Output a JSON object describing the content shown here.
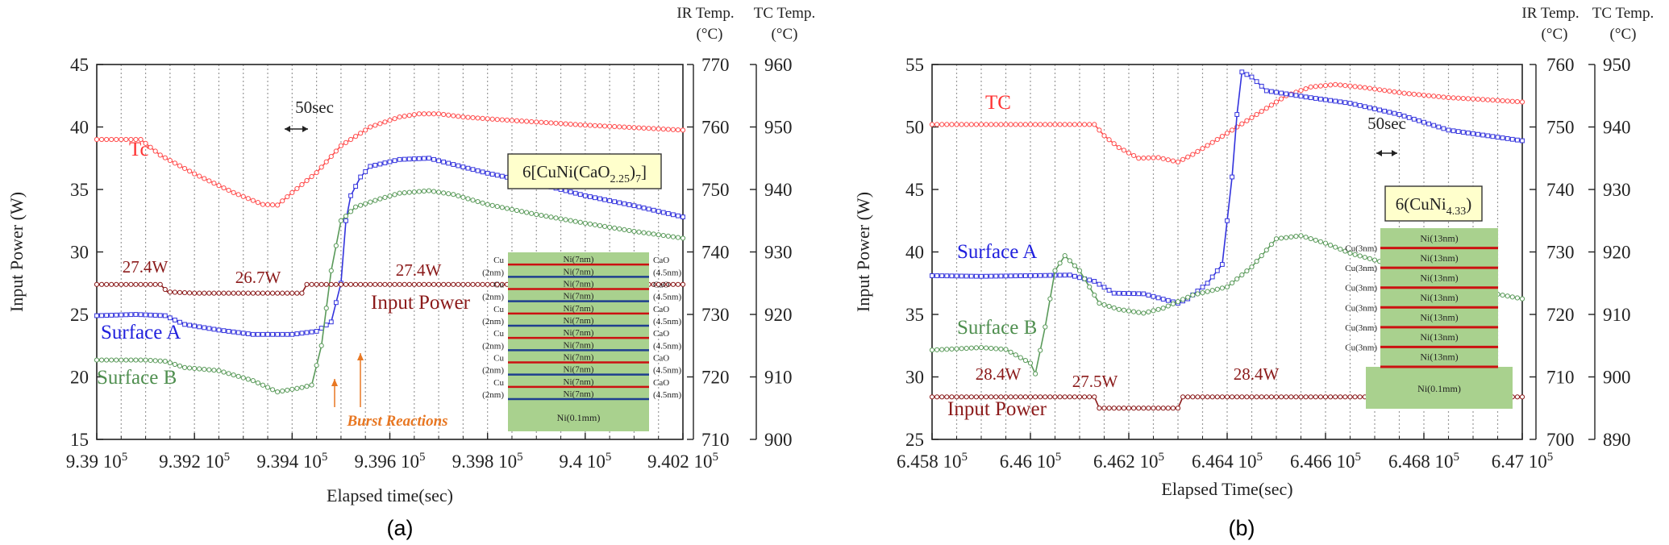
{
  "figure": {
    "panel_labels": [
      "(a)",
      "(b)"
    ]
  },
  "chart_data": [
    {
      "type": "line",
      "panel": "(a)",
      "xlabel": "Elapsed time(sec)",
      "ylabel": "Input  Power (W)",
      "y2label": [
        "IR Temp.",
        "(°C)"
      ],
      "y3label": [
        "TC Temp.",
        "(°C)"
      ],
      "xlim": [
        939000,
        940200
      ],
      "ylim": [
        15,
        45
      ],
      "y2lim": [
        710,
        770
      ],
      "y3lim": [
        900,
        960
      ],
      "xticks": [
        939000,
        939200,
        939400,
        939600,
        939800,
        940000,
        940200
      ],
      "xtick_labels": [
        "9.39 10",
        "9.392 10",
        "9.394 10",
        "9.396 10",
        "9.398 10",
        "9.4 10",
        "9.402 10"
      ],
      "xtick_exponent": "5",
      "yticks": [
        "15",
        "20",
        "25",
        "30",
        "35",
        "40",
        "45"
      ],
      "y2ticks": [
        "710",
        "720",
        "730",
        "740",
        "750",
        "760",
        "770"
      ],
      "y3ticks": [
        "900",
        "910",
        "920",
        "930",
        "940",
        "950",
        "960"
      ],
      "grid": {
        "vertical_dotted_every_sec": 50
      },
      "series": [
        {
          "name": "Tc",
          "axis": "tc",
          "color": "#ff4d4d",
          "marker": "circle",
          "points": [
            [
              939000,
              948
            ],
            [
              939050,
              948
            ],
            [
              939090,
              948
            ],
            [
              939130,
              945.5
            ],
            [
              939200,
              942.5
            ],
            [
              939280,
              939.5
            ],
            [
              939340,
              937.6
            ],
            [
              939370,
              937.5
            ],
            [
              939400,
              939.5
            ],
            [
              939450,
              942.7
            ],
            [
              939500,
              947
            ],
            [
              939560,
              950
            ],
            [
              939620,
              951.6
            ],
            [
              939660,
              952.1
            ],
            [
              939700,
              952.1
            ],
            [
              939750,
              951.6
            ],
            [
              939820,
              951.2
            ],
            [
              939900,
              950.8
            ],
            [
              940000,
              950.3
            ],
            [
              940100,
              949.9
            ],
            [
              940200,
              949.5
            ]
          ]
        },
        {
          "name": "Surface A",
          "axis": "ir",
          "color": "#3333dd",
          "marker": "square",
          "points": [
            [
              939000,
              729.8
            ],
            [
              939080,
              730
            ],
            [
              939140,
              729.8
            ],
            [
              939180,
              728.4
            ],
            [
              939250,
              727.5
            ],
            [
              939320,
              726.8
            ],
            [
              939400,
              726.8
            ],
            [
              939450,
              727.3
            ],
            [
              939480,
              728.8
            ],
            [
              939500,
              735
            ],
            [
              939510,
              745
            ],
            [
              939520,
              749
            ],
            [
              939540,
              752
            ],
            [
              939560,
              753.7
            ],
            [
              939620,
              754.8
            ],
            [
              939680,
              755
            ],
            [
              939720,
              754.2
            ],
            [
              939800,
              752.6
            ],
            [
              939900,
              751
            ],
            [
              940000,
              749
            ],
            [
              940100,
              747.4
            ],
            [
              940200,
              745.6
            ]
          ]
        },
        {
          "name": "Surface B",
          "axis": "ir",
          "color": "#5a9a5a",
          "marker": "circle",
          "points": [
            [
              939000,
              722.7
            ],
            [
              939100,
              722.7
            ],
            [
              939140,
              722.5
            ],
            [
              939180,
              721.5
            ],
            [
              939250,
              721
            ],
            [
              939320,
              719.4
            ],
            [
              939370,
              717.6
            ],
            [
              939420,
              718.3
            ],
            [
              939440,
              718.7
            ],
            [
              939460,
              725
            ],
            [
              939480,
              737
            ],
            [
              939500,
              745
            ],
            [
              939530,
              747.2
            ],
            [
              939580,
              748.5
            ],
            [
              939620,
              749.4
            ],
            [
              939680,
              749.8
            ],
            [
              939730,
              749.2
            ],
            [
              939800,
              747.6
            ],
            [
              939900,
              746
            ],
            [
              940000,
              744.6
            ],
            [
              940100,
              743.3
            ],
            [
              940200,
              742.2
            ]
          ]
        },
        {
          "name": "Input Power",
          "axis": "power",
          "color": "#8b1a1a",
          "marker": "circle",
          "points": [
            [
              939000,
              27.4
            ],
            [
              939130,
              27.4
            ],
            [
              939145,
              26.8
            ],
            [
              939200,
              26.7
            ],
            [
              939340,
              26.7
            ],
            [
              939420,
              26.7
            ],
            [
              939430,
              27.4
            ],
            [
              940200,
              27.4
            ]
          ]
        }
      ],
      "annotations": {
        "tc_label": "Tc",
        "surface_a_label": "Surface A",
        "surface_b_label": "Surface B",
        "input_power_label": "Input Power",
        "power_levels": [
          "27.4W",
          "26.7W",
          "27.4W"
        ],
        "timescale": "50sec",
        "burst_label": "Burst Reactions",
        "sample_prefix": "6[CuNi(CaO",
        "sample_sub": "2.25",
        "sample_suffix": ")",
        "sample_sub2": "7",
        "sample_end": "]",
        "layer_inner": [
          "Ni(7nm)",
          "Ni(7nm)",
          "Ni(7nm)",
          "Ni(7nm)",
          "Ni(7nm)",
          "Ni(7nm)",
          "Ni(7nm)",
          "Ni(7nm)",
          "Ni(7nm)",
          "Ni(7nm)",
          "Ni(7nm)",
          "Ni(7nm)"
        ],
        "layer_left": [
          "Cu",
          "(2nm)",
          "Cu",
          "(2nm)",
          "Cu",
          "(2nm)",
          "Cu",
          "(2nm)",
          "Cu",
          "(2nm)",
          "Cu",
          "(2nm)"
        ],
        "layer_right": [
          "CaO",
          "(4.5nm)",
          "CaO",
          "(4.5nm)",
          "CaO",
          "(4.5nm)",
          "CaO",
          "(4.5nm)",
          "CaO",
          "(4.5nm)",
          "CaO",
          "(4.5nm)"
        ],
        "substrate": "Ni(0.1mm)"
      }
    },
    {
      "type": "line",
      "panel": "(b)",
      "xlabel": "Elapsed Time(sec)",
      "ylabel": "Input Power (W)",
      "y2label": [
        "IR Temp.",
        "(°C)"
      ],
      "y3label": [
        "TC Temp.",
        "(°C)"
      ],
      "xlim": [
        645800,
        647000
      ],
      "ylim": [
        25,
        55
      ],
      "y2lim": [
        700,
        760
      ],
      "y3lim": [
        890,
        950
      ],
      "xticks": [
        645800,
        646000,
        646200,
        646400,
        646600,
        646800,
        647000
      ],
      "xtick_labels": [
        "6.458 10",
        "6.46 10",
        "6.462 10",
        "6.464 10",
        "6.466 10",
        "6.468 10",
        "6.47 10"
      ],
      "xtick_exponent": "5",
      "yticks": [
        "25",
        "30",
        "35",
        "40",
        "45",
        "50",
        "55"
      ],
      "y2ticks": [
        "700",
        "710",
        "720",
        "730",
        "740",
        "750",
        "760"
      ],
      "y3ticks": [
        "890",
        "900",
        "910",
        "920",
        "930",
        "940",
        "950"
      ],
      "grid": {
        "vertical_dotted_every_sec": 50
      },
      "series": [
        {
          "name": "TC",
          "axis": "tc",
          "color": "#ff4d4d",
          "marker": "circle",
          "points": [
            [
              645800,
              940.4
            ],
            [
              646000,
              940.4
            ],
            [
              646130,
              940.4
            ],
            [
              646150,
              938.6
            ],
            [
              646180,
              936.7
            ],
            [
              646220,
              935
            ],
            [
              646260,
              935.1
            ],
            [
              646300,
              934.4
            ],
            [
              646330,
              935.6
            ],
            [
              646380,
              938
            ],
            [
              646450,
              941.5
            ],
            [
              646520,
              945
            ],
            [
              646570,
              946.4
            ],
            [
              646620,
              946.8
            ],
            [
              646680,
              946.3
            ],
            [
              646760,
              945.4
            ],
            [
              646850,
              944.7
            ],
            [
              646920,
              944.4
            ],
            [
              647000,
              944
            ]
          ]
        },
        {
          "name": "Surface A",
          "axis": "ir",
          "color": "#3333dd",
          "marker": "square",
          "points": [
            [
              645800,
              726.2
            ],
            [
              645900,
              726.1
            ],
            [
              646000,
              726.2
            ],
            [
              646080,
              726.3
            ],
            [
              646130,
              725.3
            ],
            [
              646170,
              723.4
            ],
            [
              646230,
              723.3
            ],
            [
              646300,
              721.8
            ],
            [
              646320,
              722.5
            ],
            [
              646360,
              725
            ],
            [
              646390,
              728
            ],
            [
              646410,
              742
            ],
            [
              646420,
              752
            ],
            [
              646430,
              758.8
            ],
            [
              646450,
              758
            ],
            [
              646480,
              755.8
            ],
            [
              646560,
              754.8
            ],
            [
              646650,
              753.8
            ],
            [
              646750,
              752
            ],
            [
              646850,
              749.5
            ],
            [
              647000,
              747.8
            ]
          ]
        },
        {
          "name": "Surface B",
          "axis": "ir",
          "color": "#5a9a5a",
          "marker": "circle",
          "points": [
            [
              645800,
              714.3
            ],
            [
              645900,
              714.7
            ],
            [
              645950,
              714.4
            ],
            [
              646000,
              712.2
            ],
            [
              646010,
              710.5
            ],
            [
              646030,
              718
            ],
            [
              646050,
              727
            ],
            [
              646070,
              729.4
            ],
            [
              646100,
              727
            ],
            [
              646140,
              721.8
            ],
            [
              646180,
              720.8
            ],
            [
              646230,
              720.2
            ],
            [
              646270,
              721
            ],
            [
              646330,
              723.1
            ],
            [
              646400,
              724.4
            ],
            [
              646450,
              727.6
            ],
            [
              646500,
              732.1
            ],
            [
              646550,
              732.6
            ],
            [
              646600,
              731.4
            ],
            [
              646650,
              729.8
            ],
            [
              646750,
              727.6
            ],
            [
              646850,
              724.7
            ],
            [
              647000,
              722.5
            ]
          ]
        },
        {
          "name": "Input Power",
          "axis": "power",
          "color": "#8b1a1a",
          "marker": "circle",
          "points": [
            [
              645800,
              28.4
            ],
            [
              646130,
              28.4
            ],
            [
              646140,
              27.5
            ],
            [
              646300,
              27.5
            ],
            [
              646310,
              28.4
            ],
            [
              647000,
              28.4
            ]
          ]
        }
      ],
      "annotations": {
        "tc_label": "TC",
        "surface_a_label": "Surface A",
        "surface_b_label": "Surface B",
        "input_power_label": "Input Power",
        "power_levels": [
          "28.4W",
          "27.5W",
          "28.4W"
        ],
        "timescale": "50sec",
        "sample_prefix": "6(CuNi",
        "sample_sub": "4.33",
        "sample_end": ")",
        "layer_inner": [
          "Ni(13nm)",
          "Ni(13nm)",
          "Ni(13nm)",
          "Ni(13nm)",
          "Ni(13nm)",
          "Ni(13nm)",
          "Ni(13nm)"
        ],
        "layer_left": [
          "Cu(3nm)",
          "Cu(3nm)",
          "Cu(3nm)",
          "Cu(3nm)",
          "Cu(3nm)",
          "Cu(3nm)"
        ],
        "substrate": "Ni(0.1mm)"
      }
    }
  ]
}
